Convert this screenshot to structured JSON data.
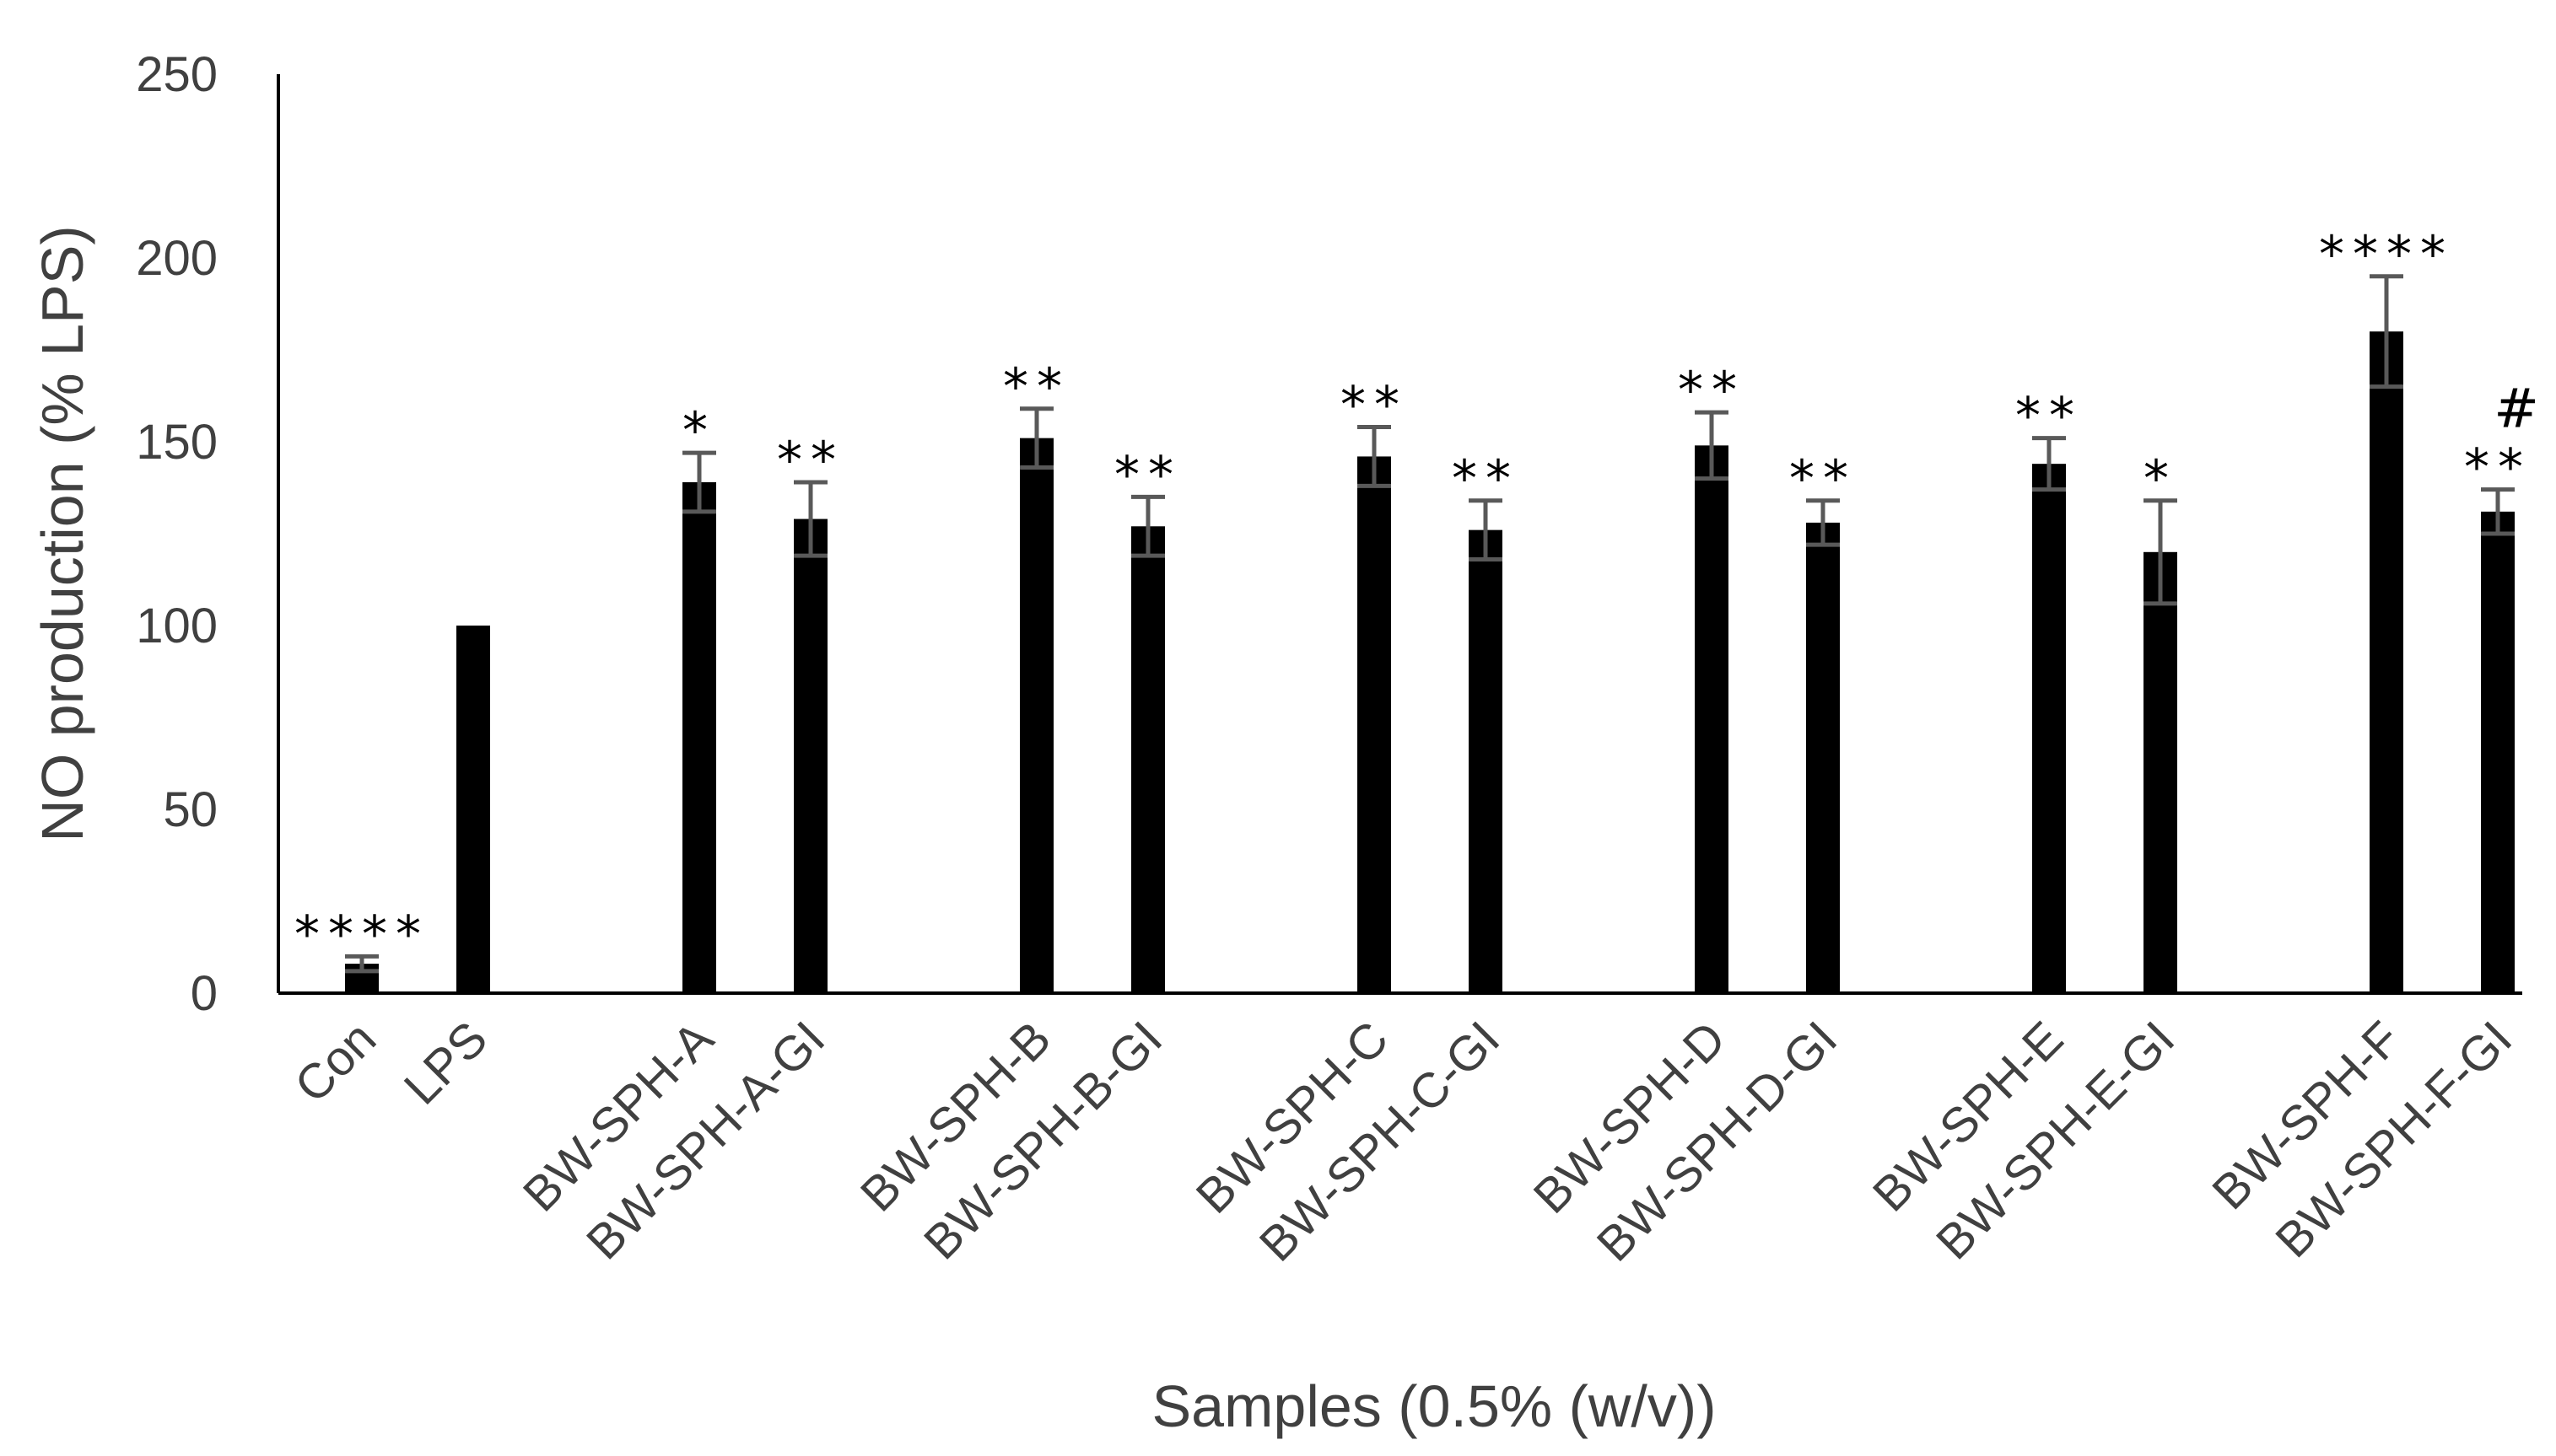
{
  "chart_data": {
    "type": "bar",
    "title": "",
    "xlabel": "Samples (0.5% (w/v))",
    "ylabel": "NO production (% LPS)",
    "ylim": [
      0,
      250
    ],
    "yticks": [
      "0",
      "50",
      "100",
      "150",
      "200",
      "250"
    ],
    "grid": false,
    "legend": "none",
    "categories": [
      "Con",
      "LPS",
      "BW-SPH-A",
      "BW-SPH-A-GI",
      "BW-SPH-B",
      "BW-SPH-B-GI",
      "BW-SPH-C",
      "BW-SPH-C-GI",
      "BW-SPH-D",
      "BW-SPH-D-GI",
      "BW-SPH-E",
      "BW-SPH-E-GI",
      "BW-SPH-F",
      "BW-SPH-F-GI"
    ],
    "values": [
      8,
      100,
      139,
      129,
      151,
      127,
      146,
      126,
      149,
      128,
      144,
      120,
      180,
      131
    ],
    "errors": [
      2,
      0,
      8,
      10,
      8,
      8,
      8,
      8,
      9,
      6,
      7,
      14,
      15,
      6
    ],
    "groups": [
      [
        0,
        1
      ],
      [
        2,
        3
      ],
      [
        4,
        5
      ],
      [
        6,
        7
      ],
      [
        8,
        9
      ],
      [
        10,
        11
      ],
      [
        12,
        13
      ]
    ],
    "significance": [
      "****",
      "",
      "*",
      "**",
      "**",
      "**",
      "**",
      "**",
      "**",
      "**",
      "**",
      "*",
      "****",
      "**"
    ],
    "extra_marks": [
      "",
      "",
      "",
      "",
      "",
      "",
      "",
      "",
      "",
      "",
      "",
      "",
      "",
      "#"
    ],
    "colors": {
      "bar": "#000000",
      "error": "#595959",
      "axis": "#000000",
      "text": "#404040"
    }
  }
}
